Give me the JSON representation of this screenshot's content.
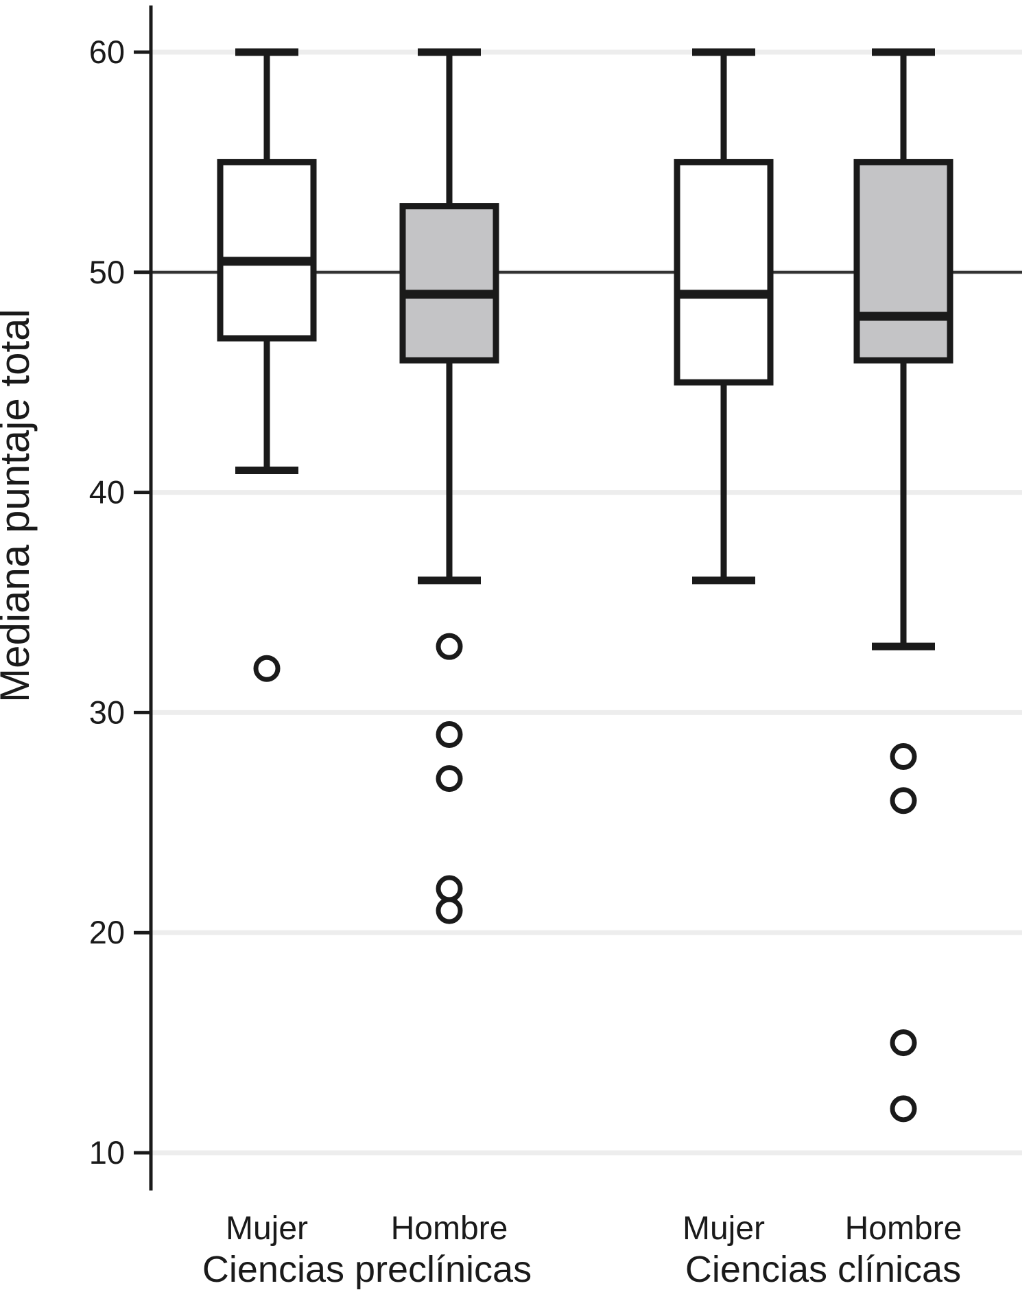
{
  "chart_data": {
    "type": "boxplot",
    "title": "",
    "xlabel": "",
    "ylabel": "Mediana puntaje total",
    "y_ticks": [
      10,
      20,
      30,
      40,
      50,
      60
    ],
    "ylim": [
      8,
      62
    ],
    "grid": "horizontal-light",
    "reference_line": 50,
    "legend": "none",
    "groups": [
      {
        "label": "Ciencias preclínicas"
      },
      {
        "label": "Ciencias clínicas"
      }
    ],
    "boxes": [
      {
        "group": "Ciencias preclínicas",
        "category": "Mujer",
        "fill": "white",
        "whisker_high": 60,
        "q3": 55,
        "median": 50.5,
        "q1": 47,
        "whisker_low": 41,
        "outliers": [
          32
        ]
      },
      {
        "group": "Ciencias preclínicas",
        "category": "Hombre",
        "fill": "gray",
        "whisker_high": 60,
        "q3": 53,
        "median": 49,
        "q1": 46,
        "whisker_low": 36,
        "outliers": [
          33,
          29,
          27,
          22,
          21
        ]
      },
      {
        "group": "Ciencias clínicas",
        "category": "Mujer",
        "fill": "white",
        "whisker_high": 60,
        "q3": 55,
        "median": 49,
        "q1": 45,
        "whisker_low": 36,
        "outliers": []
      },
      {
        "group": "Ciencias clínicas",
        "category": "Hombre",
        "fill": "gray",
        "whisker_high": 60,
        "q3": 55,
        "median": 48,
        "q1": 46,
        "whisker_low": 33,
        "outliers": [
          28,
          26,
          15,
          12
        ]
      }
    ],
    "colors": {
      "box_fill_white": "#ffffff",
      "box_fill_gray": "#c4c4c6",
      "stroke": "#1a1a1a",
      "gridline": "#ededed",
      "reference_line": "#333333",
      "text": "#1a1a1a"
    }
  }
}
